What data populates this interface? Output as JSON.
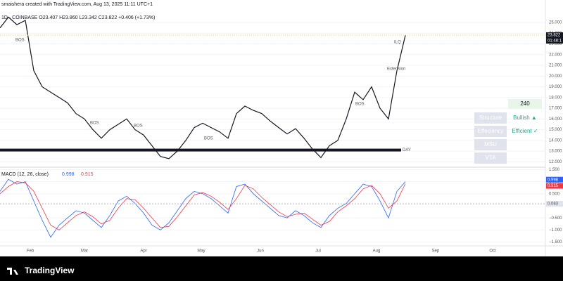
{
  "header": {
    "credit": "smaishera created with TradingView.com, Aug 13, 2025 11:11 UTC+1",
    "legend": "1D · COINBASE  O23.407  H23.860  L23.342  C23.822  +0.406 (+1.73%)"
  },
  "chart_data": [
    {
      "type": "line",
      "name": "price",
      "series": [
        {
          "name": "Close",
          "color": "#131722",
          "values": [
            24.5,
            25.5,
            24.8,
            25.2,
            20.5,
            19,
            18.5,
            18,
            17.5,
            16.5,
            16,
            15,
            14.2,
            15,
            15.5,
            16,
            15,
            14.5,
            13.5,
            12.5,
            12.3,
            13,
            14,
            15.2,
            15.6,
            15.2,
            14.8,
            14.2,
            16.5,
            17.2,
            16.8,
            16.5,
            15.8,
            15.2,
            14.6,
            15.1,
            14.2,
            13.2,
            12.4,
            13.5,
            14,
            16,
            18.5,
            17.8,
            19,
            17,
            16,
            20.5,
            23.8
          ]
        }
      ],
      "ylim": [
        11.5,
        27.1
      ],
      "yticks": [
        {
          "value": 25,
          "label": "25.000"
        },
        {
          "value": 24,
          "label": "24.000"
        },
        {
          "value": 23,
          "label": "23.000"
        },
        {
          "value": 22,
          "label": "22.000"
        },
        {
          "value": 21,
          "label": "21.000"
        },
        {
          "value": 20,
          "label": "20.000"
        },
        {
          "value": 19,
          "label": "19.000"
        },
        {
          "value": 18,
          "label": "18.000"
        },
        {
          "value": 17,
          "label": "17.000"
        },
        {
          "value": 16,
          "label": "16.000"
        },
        {
          "value": 15,
          "label": "15.000"
        },
        {
          "value": 14,
          "label": "14.000"
        },
        {
          "value": 13,
          "label": "13.000"
        },
        {
          "value": 12,
          "label": "12.000"
        }
      ],
      "last": {
        "value": 23.822,
        "label": "23.822",
        "countdown": "01:48:1"
      },
      "level": {
        "value": 13.1,
        "label": "DAY"
      },
      "annotations": [
        "BOS",
        "BOS",
        "BOS",
        "BOS",
        "BOS",
        "ILQ",
        "Extension"
      ]
    },
    {
      "type": "line",
      "name": "macd",
      "title": "MACD (12, 26, close)",
      "series": [
        {
          "name": "MACD",
          "color": "#2962ff",
          "values": [
            0.6,
            1.1,
            0.9,
            1.0,
            0.2,
            -0.6,
            -1.3,
            -0.8,
            -0.5,
            -0.2,
            -0.3,
            -0.6,
            -0.9,
            -0.4,
            0.2,
            0.4,
            0.1,
            -0.3,
            -0.8,
            -1.0,
            -0.7,
            -0.2,
            0.3,
            0.6,
            0.5,
            0.3,
            0,
            -0.3,
            0.8,
            0.9,
            0.5,
            0.2,
            -0.1,
            -0.4,
            -0.5,
            -0.2,
            -0.4,
            -0.7,
            -0.9,
            -0.4,
            -0.1,
            0.1,
            0.5,
            0.9,
            0.8,
            0.2,
            -0.5,
            0.6,
            0.998
          ]
        },
        {
          "name": "Signal",
          "color": "#f23645",
          "values": [
            0.5,
            0.8,
            1.0,
            0.95,
            0.6,
            -0.1,
            -0.8,
            -1.0,
            -0.7,
            -0.4,
            -0.25,
            -0.45,
            -0.75,
            -0.6,
            -0.1,
            0.3,
            0.25,
            -0.1,
            -0.5,
            -0.9,
            -0.85,
            -0.45,
            0,
            0.45,
            0.55,
            0.4,
            0.15,
            -0.15,
            0.3,
            0.85,
            0.7,
            0.35,
            0.05,
            -0.25,
            -0.45,
            -0.35,
            -0.3,
            -0.55,
            -0.8,
            -0.65,
            -0.25,
            0,
            0.3,
            0.7,
            0.85,
            0.5,
            -0.1,
            0.2,
            0.915
          ]
        }
      ],
      "histogram": {
        "name": "Histogram",
        "value": 0.083,
        "label": "0.083"
      },
      "value_labels": [
        "0.998",
        "0.915"
      ],
      "ylim": [
        -1.6,
        1.6
      ],
      "yticks": [
        {
          "value": 1.5,
          "label": "1.500"
        },
        {
          "value": 1,
          "label": "1.000"
        },
        {
          "value": 0.5,
          "label": "0.500"
        },
        {
          "value": -0.5,
          "label": "−0.500"
        },
        {
          "value": -1,
          "label": "−1.000"
        },
        {
          "value": -1.5,
          "label": "−1.500"
        }
      ]
    }
  ],
  "x_axis": [
    "Feb",
    "Mar",
    "Apr",
    "May",
    "Jun",
    "Jul",
    "Aug",
    "Sep",
    "Oct"
  ],
  "panel": {
    "timeframe": "240",
    "rows": [
      [
        "Structure",
        "Bullish ▲"
      ],
      [
        "Effeciency",
        "Efficient ✓"
      ],
      [
        "MSU",
        ""
      ],
      [
        "VTA",
        ""
      ]
    ]
  },
  "footer": {
    "brand": "TradingView"
  }
}
